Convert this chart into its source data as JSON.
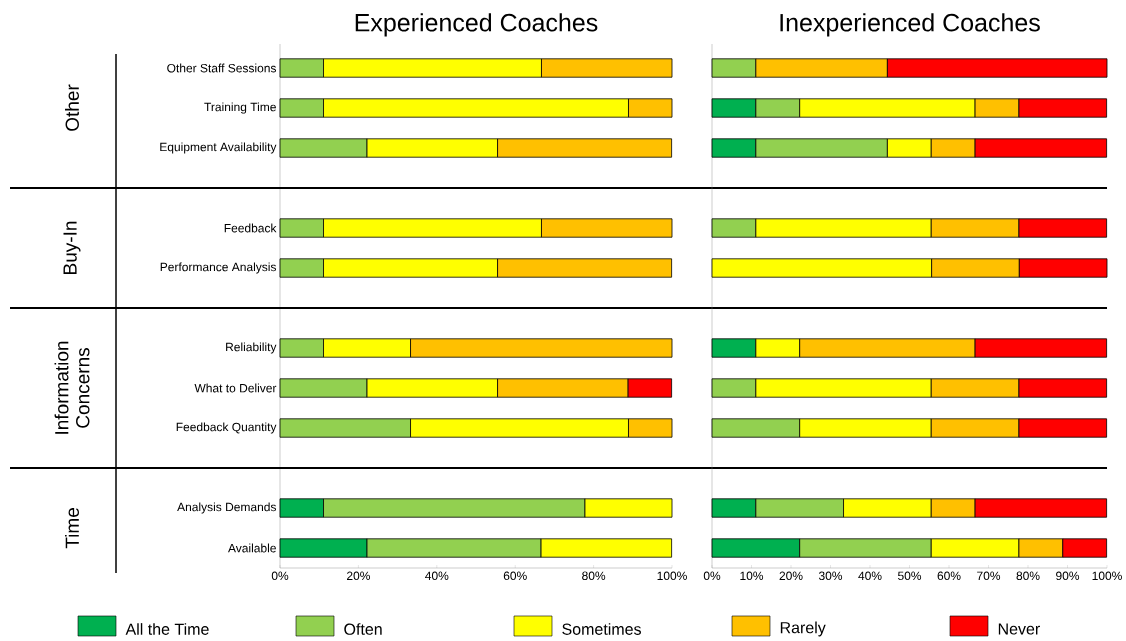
{
  "chart_data": [
    {
      "type": "bar",
      "orientation": "horizontal",
      "stacked": true,
      "title": "Experienced Coaches",
      "legend": "bottom",
      "categories": [
        "Other Staff Sessions",
        "Training Time",
        "Equipment Availability",
        null,
        "Feedback",
        "Performance Analysis",
        null,
        "Reliability",
        "What to Deliver",
        "Feedback Quantity",
        null,
        "Analysis Demands",
        "Available"
      ],
      "annotations": [
        "Other",
        "Buy-In",
        "Information Concerns",
        "Time"
      ],
      "xlim": [
        0,
        100
      ],
      "xticks": [
        {
          "value": 0,
          "label": "0%"
        },
        {
          "value": 20,
          "label": "20%"
        },
        {
          "value": 40,
          "label": "40%"
        },
        {
          "value": 60,
          "label": "60%"
        },
        {
          "value": 80,
          "label": "80%"
        },
        {
          "value": 100,
          "label": "100%"
        }
      ],
      "series": [
        {
          "name": "All the Time",
          "color": "#00b050",
          "values": [
            null,
            null,
            null,
            null,
            null,
            null,
            null,
            null,
            null,
            null,
            null,
            11.1,
            22.2
          ]
        },
        {
          "name": "Often",
          "color": "#92d050",
          "values": [
            11.1,
            11.1,
            22.2,
            null,
            11.1,
            11.1,
            null,
            11.1,
            22.2,
            33.3,
            null,
            66.7,
            44.4
          ]
        },
        {
          "name": "Sometimes",
          "color": "#ffff00",
          "values": [
            55.6,
            77.8,
            33.3,
            null,
            55.6,
            44.4,
            null,
            22.2,
            33.3,
            55.6,
            null,
            22.2,
            33.3
          ]
        },
        {
          "name": "Rarely",
          "color": "#ffc000",
          "values": [
            33.3,
            11.1,
            44.4,
            null,
            33.3,
            44.4,
            null,
            66.7,
            33.3,
            11.1,
            null,
            null,
            null
          ]
        },
        {
          "name": "Never",
          "color": "#ff0000",
          "values": [
            null,
            null,
            null,
            null,
            null,
            null,
            null,
            null,
            11.1,
            null,
            null,
            null,
            null
          ]
        }
      ]
    },
    {
      "type": "bar",
      "orientation": "horizontal",
      "stacked": true,
      "title": "Inexperienced Coaches",
      "tick_labels": "x",
      "categories": [
        null,
        null,
        null,
        null,
        null,
        null,
        null,
        null,
        null,
        null,
        null,
        null,
        null
      ],
      "xlim": [
        0,
        100
      ],
      "xticks": [
        {
          "value": 0,
          "label": "0%"
        },
        {
          "value": 10,
          "label": "10%"
        },
        {
          "value": 20,
          "label": "20%"
        },
        {
          "value": 30,
          "label": "30%"
        },
        {
          "value": 40,
          "label": "40%"
        },
        {
          "value": 50,
          "label": "50%"
        },
        {
          "value": 60,
          "label": "60%"
        },
        {
          "value": 70,
          "label": "70%"
        },
        {
          "value": 80,
          "label": "80%"
        },
        {
          "value": 90,
          "label": "90%"
        },
        {
          "value": 100,
          "label": "100%"
        }
      ],
      "series": [
        {
          "color": "#00b050",
          "values": [
            null,
            11.1,
            11.1,
            null,
            null,
            null,
            null,
            11.1,
            null,
            null,
            null,
            11.1,
            22.2
          ]
        },
        {
          "color": "#92d050",
          "values": [
            11.1,
            11.1,
            33.3,
            null,
            11.1,
            null,
            null,
            null,
            11.1,
            22.2,
            null,
            22.2,
            33.3
          ]
        },
        {
          "color": "#ffff00",
          "values": [
            null,
            44.4,
            11.1,
            null,
            44.4,
            55.6,
            null,
            11.1,
            44.4,
            33.3,
            null,
            22.2,
            22.2
          ]
        },
        {
          "color": "#ffc000",
          "values": [
            33.3,
            11.1,
            11.1,
            null,
            22.2,
            22.2,
            null,
            44.4,
            22.2,
            22.2,
            null,
            11.1,
            11.1
          ]
        },
        {
          "color": "#ff0000",
          "values": [
            55.6,
            22.2,
            33.3,
            null,
            22.2,
            22.2,
            null,
            33.3,
            22.2,
            22.2,
            null,
            33.3,
            11.1
          ]
        }
      ]
    }
  ]
}
